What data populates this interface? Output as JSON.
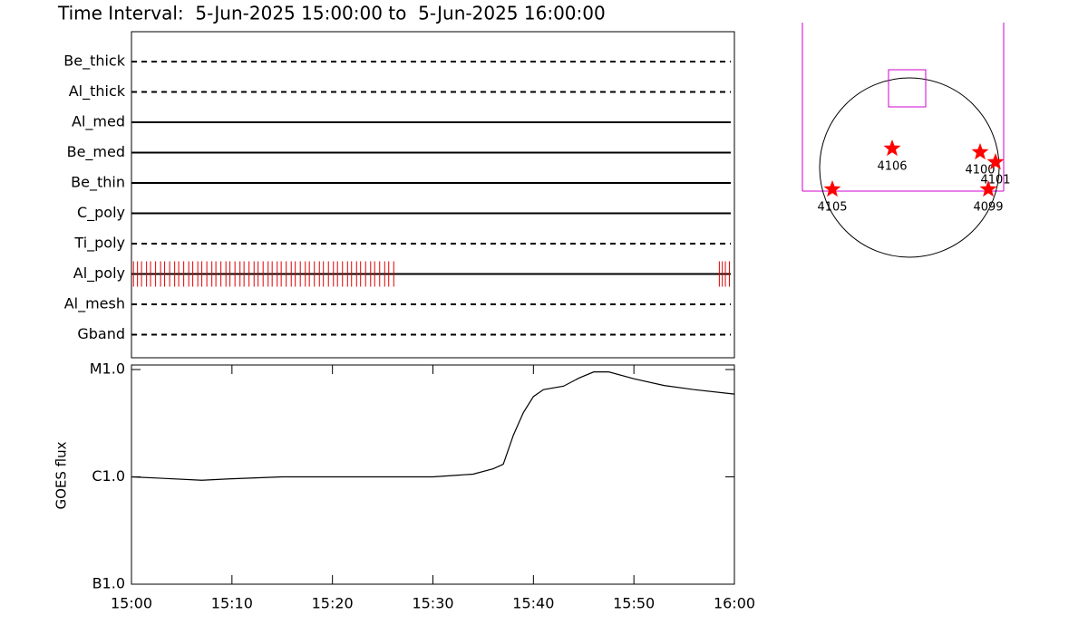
{
  "title": "Time Interval:  5-Jun-2025 15:00:00 to  5-Jun-2025 16:00:00",
  "filters": [
    {
      "name": "Be_thick",
      "style": "dashed"
    },
    {
      "name": "Al_thick",
      "style": "dashed"
    },
    {
      "name": "Al_med",
      "style": "solid"
    },
    {
      "name": "Be_med",
      "style": "solid"
    },
    {
      "name": "Be_thin",
      "style": "solid"
    },
    {
      "name": "C_poly",
      "style": "solid"
    },
    {
      "name": "Ti_poly",
      "style": "dashed"
    },
    {
      "name": "Al_poly",
      "style": "solid",
      "color": "#e00000",
      "exposures": [
        0.2,
        0.6,
        1.0,
        1.5,
        1.9,
        2.4,
        2.9,
        3.3,
        3.8,
        4.3,
        4.7,
        5.2,
        5.7,
        6.1,
        6.6,
        7.0,
        7.5,
        8.0,
        8.4,
        8.9,
        9.4,
        9.8,
        10.3,
        10.8,
        11.2,
        11.7,
        12.2,
        12.6,
        13.1,
        13.6,
        14.0,
        14.5,
        14.9,
        15.4,
        15.9,
        16.3,
        16.8,
        17.3,
        17.7,
        18.2,
        18.7,
        19.1,
        19.6,
        20.1,
        20.5,
        21.0,
        21.5,
        21.9,
        22.4,
        22.8,
        23.3,
        23.8,
        24.2,
        24.7,
        25.2,
        25.6,
        26.1,
        58.5,
        58.8,
        59.1,
        59.5
      ]
    },
    {
      "name": "Al_mesh",
      "style": "dashed"
    },
    {
      "name": "Gband",
      "style": "dashed"
    }
  ],
  "chart_data": {
    "type": "line",
    "ylabel": "GOES flux",
    "log_scale": true,
    "x": [
      0,
      3,
      7,
      10,
      15,
      20,
      25,
      30,
      34,
      36,
      37,
      38,
      39,
      40,
      41,
      43,
      44.5,
      46,
      47.5,
      50,
      53,
      56,
      60
    ],
    "series": [
      {
        "color": "#000000",
        "values": [
          1e-06,
          9.7e-07,
          9.3e-07,
          9.6e-07,
          1e-06,
          1e-06,
          1e-06,
          1e-06,
          1.06e-06,
          1.19e-06,
          1.31e-06,
          2.44e-06,
          3.97e-06,
          5.6e-06,
          6.5e-06,
          7e-06,
          8.3e-06,
          9.5e-06,
          9.5e-06,
          8.2e-06,
          7.1e-06,
          6.5e-06,
          5.9e-06
        ]
      }
    ],
    "xlim": [
      0,
      60
    ],
    "xticks": [
      {
        "value": 0,
        "label": "15:00"
      },
      {
        "value": 10,
        "label": "15:10"
      },
      {
        "value": 20,
        "label": "15:20"
      },
      {
        "value": 30,
        "label": "15:30"
      },
      {
        "value": 40,
        "label": "15:40"
      },
      {
        "value": 50,
        "label": "15:50"
      },
      {
        "value": 60,
        "label": "16:00"
      }
    ],
    "ylim": [
      1e-07,
      1e-05
    ],
    "yticks": [
      {
        "value": 1e-07,
        "label": "B1.0"
      },
      {
        "value": 1e-06,
        "label": "C1.0"
      },
      {
        "value": 1e-05,
        "label": "M1.0"
      }
    ]
  },
  "active_regions": [
    {
      "label": "4106"
    },
    {
      "label": "4100"
    },
    {
      "label": "4101"
    },
    {
      "label": "4105"
    },
    {
      "label": "4099"
    }
  ]
}
